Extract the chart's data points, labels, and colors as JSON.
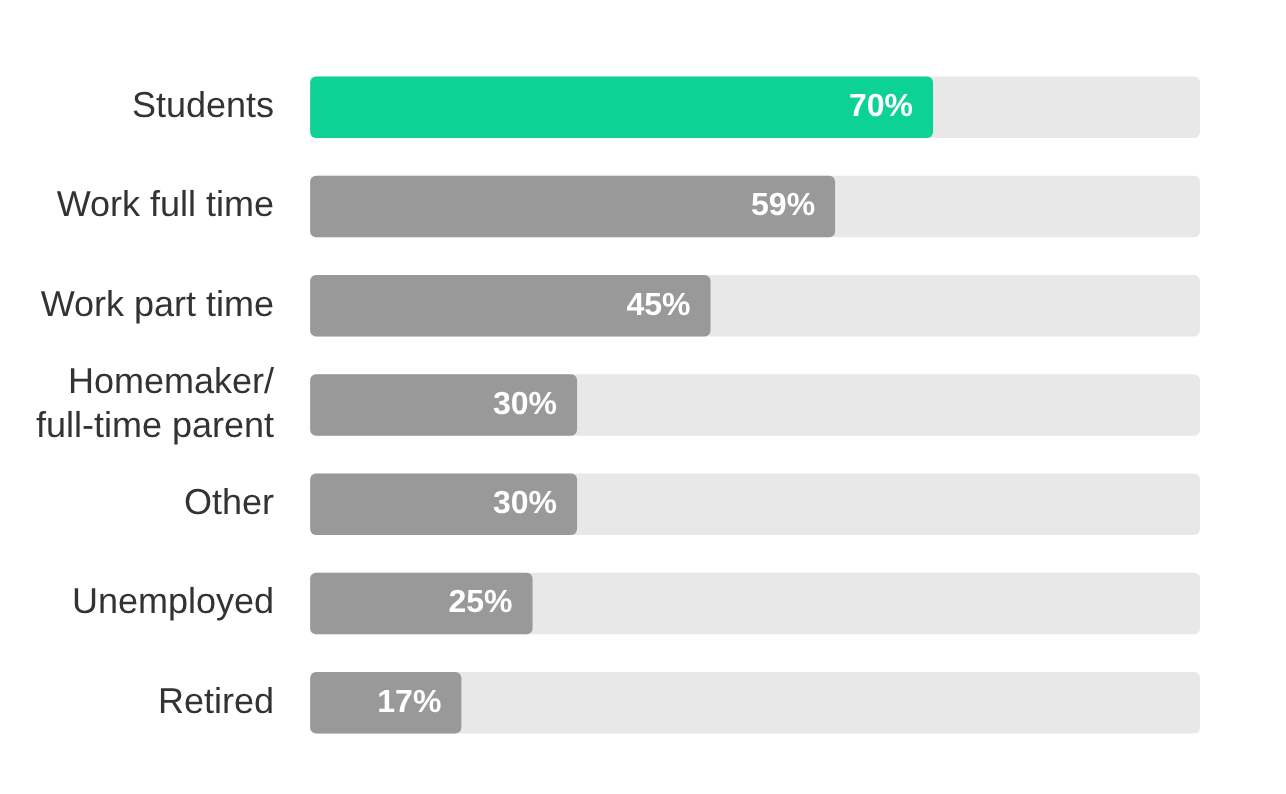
{
  "chart_data": {
    "type": "bar",
    "orientation": "horizontal",
    "categories": [
      "Students",
      "Work full time",
      "Work part time",
      "Homemaker/ full-time parent",
      "Other",
      "Unemployed",
      "Retired"
    ],
    "values": [
      70,
      59,
      45,
      30,
      30,
      25,
      17
    ],
    "colors": [
      "#0cd295",
      "#999999",
      "#999999",
      "#999999",
      "#999999",
      "#999999",
      "#999999"
    ],
    "value_labels": [
      "70%",
      "59%",
      "45%",
      "30%",
      "30%",
      "25%",
      "17%"
    ],
    "xlim": [
      0,
      100
    ],
    "tick_labels": "y",
    "grid": false,
    "legend": false
  }
}
